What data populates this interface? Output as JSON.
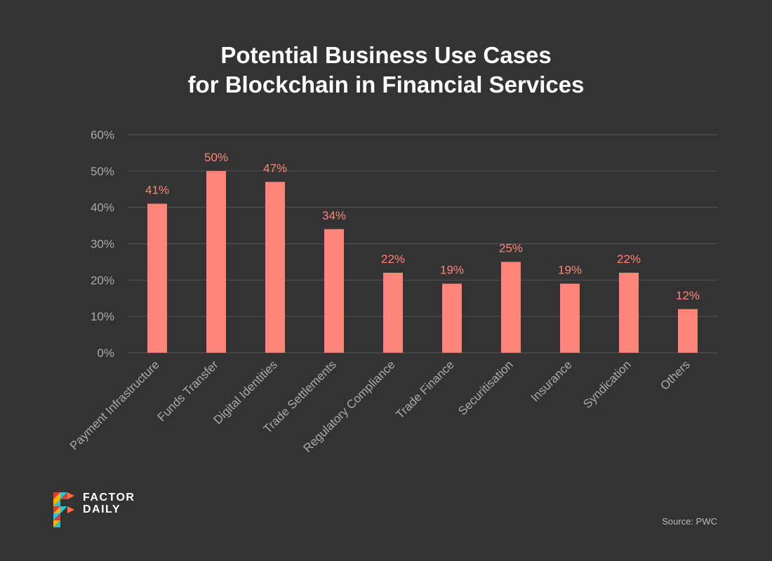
{
  "chart_data": {
    "type": "bar",
    "title": "Potential Business Use Cases for Blockchain in Financial Services",
    "title_lines": [
      "Potential Business Use Cases",
      "for Blockchain in Financial Services"
    ],
    "categories": [
      "Payment Infrastructure",
      "Funds Transfer",
      "Digital Identities",
      "Trade Settlements",
      "Regulatory Compliance",
      "Trade Finance",
      "Securitisation",
      "Insurance",
      "Syndication",
      "Others"
    ],
    "values": [
      41,
      50,
      47,
      34,
      22,
      19,
      25,
      19,
      22,
      12
    ],
    "data_labels": [
      "41%",
      "50%",
      "47%",
      "34%",
      "22%",
      "19%",
      "25%",
      "19%",
      "22%",
      "12%"
    ],
    "ylim": [
      0,
      60
    ],
    "yticks": [
      0,
      10,
      20,
      30,
      40,
      50,
      60
    ],
    "ytick_labels": [
      "0%",
      "10%",
      "20%",
      "30%",
      "40%",
      "50%",
      "60%"
    ],
    "xlabel": "",
    "ylabel": "",
    "grid": true,
    "legend": "none"
  },
  "colors": {
    "bar": "#ff8479",
    "background": "#333333",
    "grid": "#555555",
    "tick_text": "#aaaaaa"
  },
  "source": "Source: PWC",
  "logo": {
    "line1": "FACTOR",
    "line2": "DAILY"
  }
}
